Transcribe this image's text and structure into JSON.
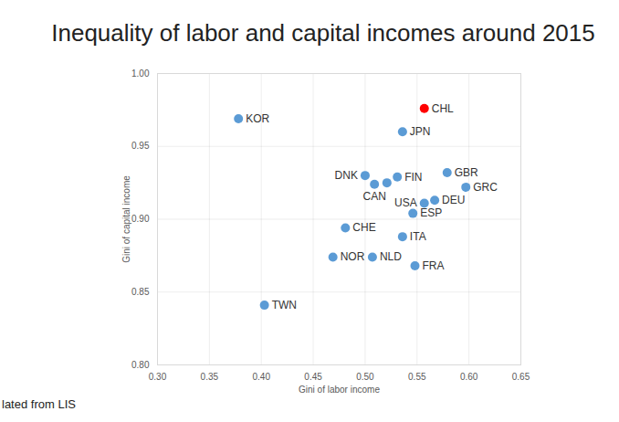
{
  "chart_data": {
    "type": "scatter",
    "title": "Inequality of labor and capital incomes around 2015",
    "x_label": "Gini of labor income",
    "y_label": "Gini of capital income",
    "source": "lated from LIS",
    "labels": [
      "KOR",
      "CHL",
      "JPN",
      "DNK",
      "CAN",
      null,
      "FIN",
      "GBR",
      "GRC",
      "DEU",
      "USA",
      "ESP",
      "CHE",
      "ITA",
      "NOR",
      "NLD",
      "FRA",
      "TWN"
    ],
    "x": [
      0.378,
      0.557,
      0.536,
      0.5,
      0.509,
      0.521,
      0.531,
      0.579,
      0.597,
      0.567,
      0.557,
      0.546,
      0.481,
      0.536,
      0.469,
      0.507,
      0.548,
      0.403
    ],
    "values": [
      0.969,
      0.976,
      0.96,
      0.93,
      0.924,
      0.925,
      0.929,
      0.932,
      0.922,
      0.913,
      0.911,
      0.904,
      0.894,
      0.888,
      0.874,
      0.874,
      0.868,
      0.841
    ],
    "colors": [
      "#5b9bd5",
      "#ff0000",
      "#5b9bd5",
      "#5b9bd5",
      "#5b9bd5",
      "#5b9bd5",
      "#5b9bd5",
      "#5b9bd5",
      "#5b9bd5",
      "#5b9bd5",
      "#5b9bd5",
      "#5b9bd5",
      "#5b9bd5",
      "#5b9bd5",
      "#5b9bd5",
      "#5b9bd5",
      "#5b9bd5",
      "#5b9bd5"
    ],
    "marker": "circle",
    "xlim": [
      0.3,
      0.65
    ],
    "ylim": [
      0.8,
      1.0
    ],
    "xticks": [
      {
        "value": 0.3,
        "label": "0.30"
      },
      {
        "value": 0.35,
        "label": "0.35"
      },
      {
        "value": 0.4,
        "label": "0.40"
      },
      {
        "value": 0.45,
        "label": "0.45"
      },
      {
        "value": 0.5,
        "label": "0.50"
      },
      {
        "value": 0.55,
        "label": "0.55"
      },
      {
        "value": 0.6,
        "label": "0.60"
      },
      {
        "value": 0.65,
        "label": "0.65"
      }
    ],
    "yticks": [
      {
        "value": 0.8,
        "label": "0.80"
      },
      {
        "value": 0.85,
        "label": "0.85"
      },
      {
        "value": 0.9,
        "label": "0.90"
      },
      {
        "value": 0.95,
        "label": "0.95"
      },
      {
        "value": 1.0,
        "label": "1.00"
      }
    ],
    "grid": true
  }
}
